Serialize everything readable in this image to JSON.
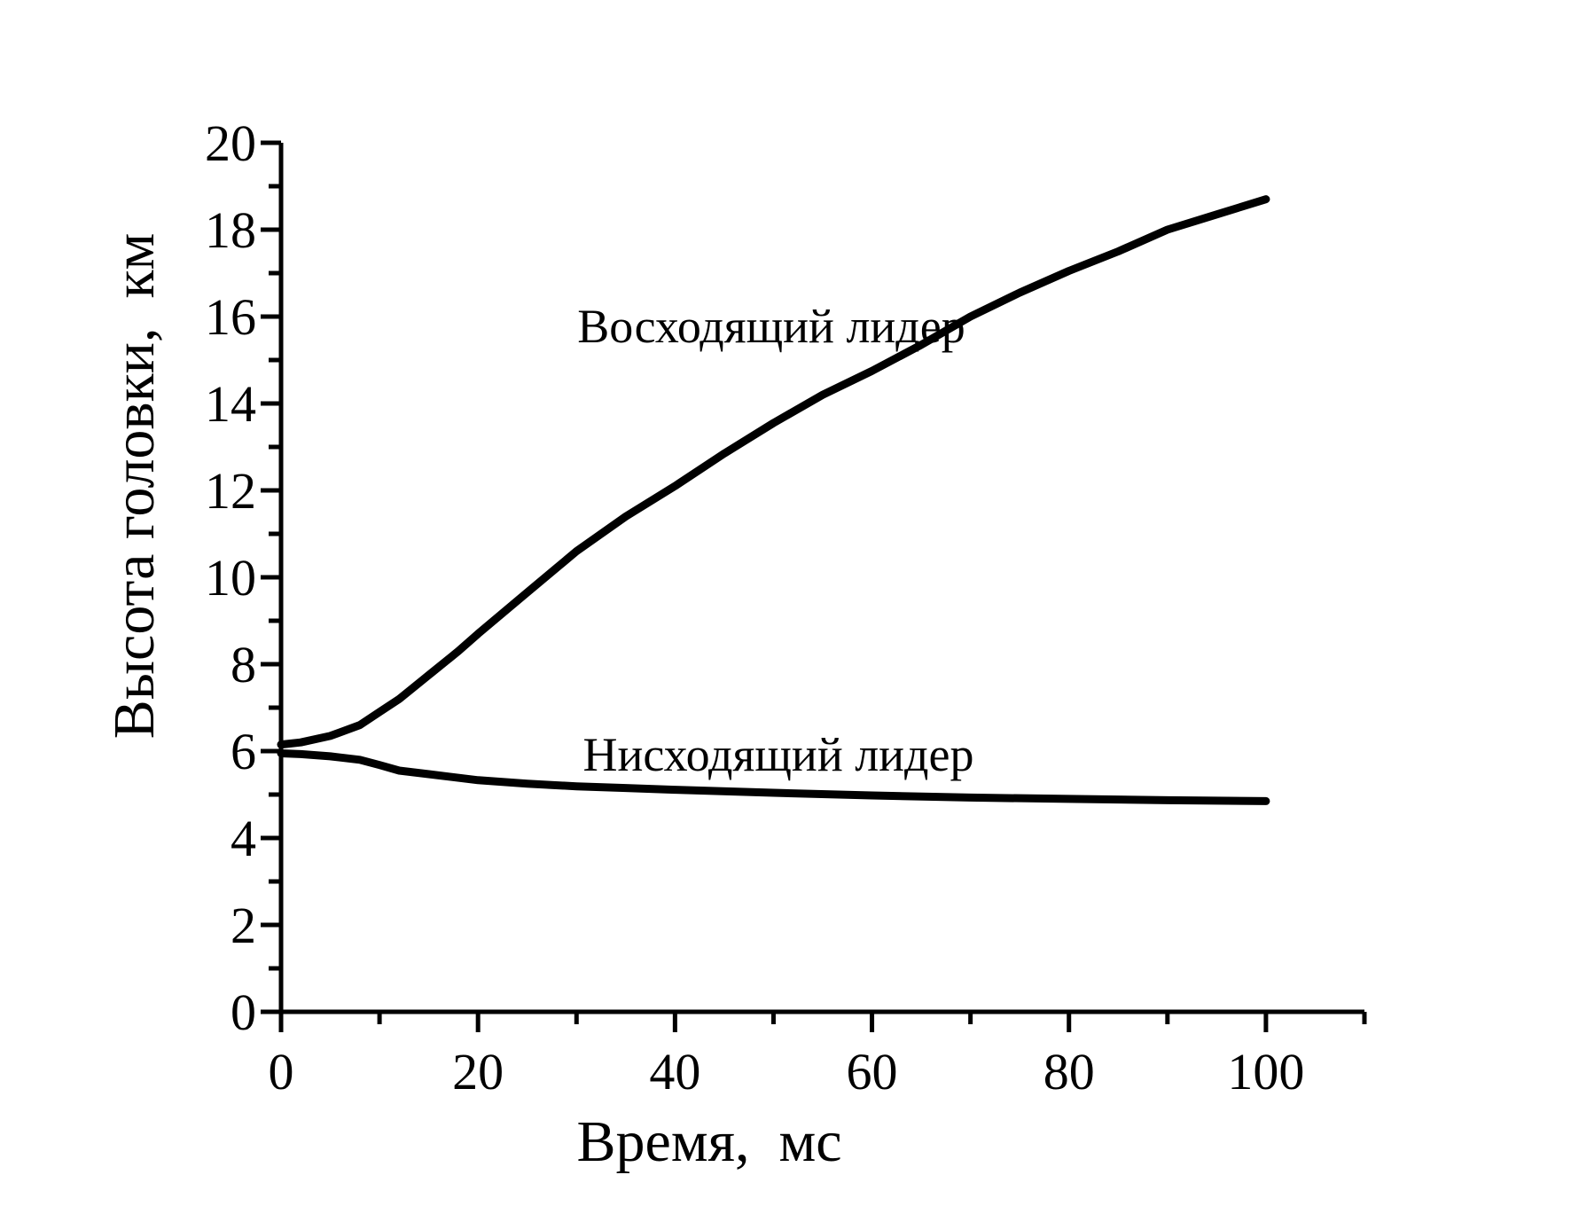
{
  "figure": {
    "background": "#ffffff",
    "foreground": "#000000"
  },
  "chart_data": {
    "type": "line",
    "title": "",
    "xlabel": "Время,  мс",
    "ylabel": "Высота головки,  км",
    "xlim": [
      0,
      110
    ],
    "ylim": [
      0,
      20
    ],
    "x_major_ticks": [
      0,
      20,
      40,
      60,
      80,
      100
    ],
    "x_minor_ticks": [
      10,
      30,
      50,
      70,
      90,
      110
    ],
    "y_major_ticks": [
      0,
      2,
      4,
      6,
      8,
      10,
      12,
      14,
      16,
      18,
      20
    ],
    "y_minor_ticks": [
      1,
      3,
      5,
      7,
      9,
      11,
      13,
      15,
      17,
      19
    ],
    "grid": false,
    "legend_position": "inline-annotations",
    "line_color": "#000000",
    "series": [
      {
        "name": "Восходящий лидер",
        "x": [
          0,
          2,
          5,
          8,
          10,
          12,
          15,
          18,
          20,
          25,
          30,
          35,
          40,
          45,
          50,
          55,
          60,
          65,
          70,
          75,
          80,
          85,
          90,
          95,
          100
        ],
        "y": [
          6.15,
          6.2,
          6.35,
          6.6,
          6.9,
          7.2,
          7.75,
          8.3,
          8.7,
          9.65,
          10.6,
          11.4,
          12.1,
          12.85,
          13.55,
          14.2,
          14.75,
          15.35,
          16.0,
          16.55,
          17.05,
          17.5,
          18.0,
          18.35,
          18.7
        ]
      },
      {
        "name": "Нисходящий лидер",
        "x": [
          0,
          2,
          5,
          8,
          10,
          12,
          15,
          20,
          25,
          30,
          35,
          40,
          50,
          60,
          70,
          80,
          90,
          100
        ],
        "y": [
          5.95,
          5.93,
          5.88,
          5.8,
          5.68,
          5.55,
          5.47,
          5.33,
          5.25,
          5.19,
          5.15,
          5.11,
          5.04,
          4.98,
          4.93,
          4.9,
          4.87,
          4.85
        ]
      }
    ]
  }
}
